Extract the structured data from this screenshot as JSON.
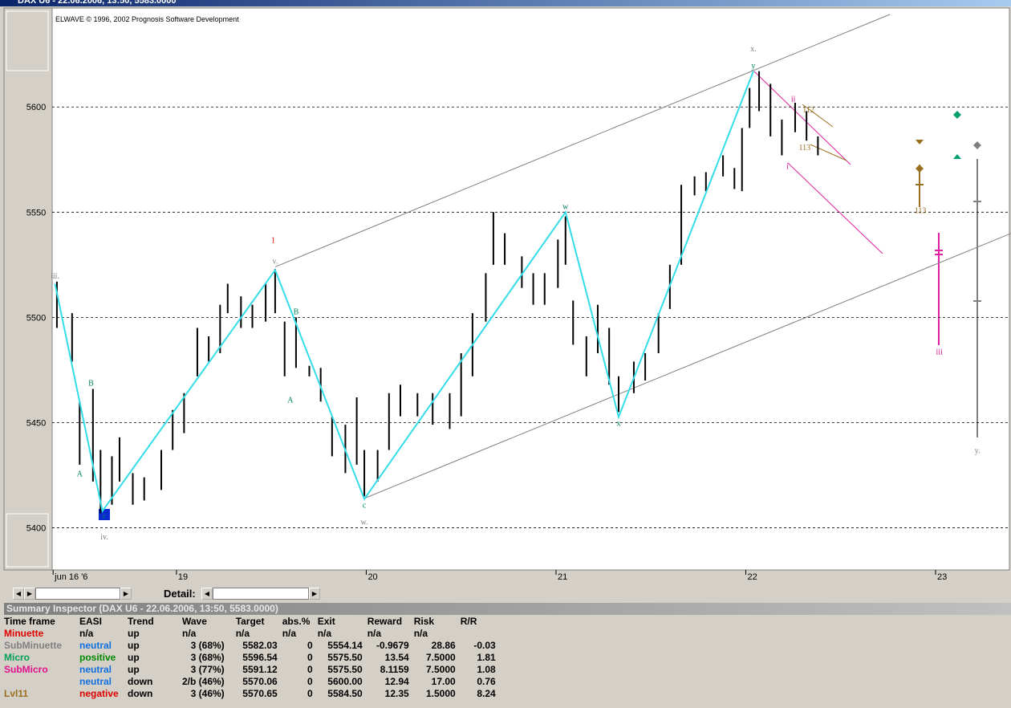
{
  "window_title": "DAX U6 - 22.06.2006, 13:50, 5583.0000",
  "chart_data": {
    "type": "ohlc",
    "title": "ELWAVE © 1996, 2002 Prognosis Software Development",
    "xlim": [
      0.345,
      5.389
    ],
    "ylim": [
      5380,
      5647
    ],
    "yticks": [
      5400,
      5450,
      5500,
      5550,
      5600
    ],
    "xticks": [
      {
        "value": 0.35,
        "label": "jun 16 '6"
      },
      {
        "value": 1,
        "label": "19"
      },
      {
        "value": 2,
        "label": "20"
      },
      {
        "value": 3,
        "label": "21"
      },
      {
        "value": 4,
        "label": "22"
      },
      {
        "value": 5,
        "label": "23"
      }
    ],
    "grid": true,
    "color": "#000000",
    "x": [
      0.37,
      0.45,
      0.49,
      0.56,
      0.6,
      0.66,
      0.7,
      0.77,
      0.83,
      0.92,
      0.98,
      1.04,
      1.11,
      1.17,
      1.23,
      1.27,
      1.34,
      1.4,
      1.47,
      1.52,
      1.57,
      1.63,
      1.7,
      1.76,
      1.82,
      1.89,
      1.95,
      1.99,
      2.06,
      2.12,
      2.18,
      2.27,
      2.35,
      2.44,
      2.5,
      2.56,
      2.63,
      2.67,
      2.73,
      2.82,
      2.88,
      2.94,
      3.01,
      3.05,
      3.09,
      3.16,
      3.22,
      3.28,
      3.33,
      3.41,
      3.47,
      3.54,
      3.6,
      3.66,
      3.73,
      3.79,
      3.88,
      3.94,
      3.98,
      4.02,
      4.07,
      4.13,
      4.19,
      4.26,
      4.32,
      4.38
    ],
    "high": [
      5517,
      5502,
      5460,
      5466,
      5437,
      5434,
      5443,
      5426,
      5424,
      5437,
      5456,
      5464,
      5495,
      5491,
      5506,
      5516,
      5510,
      5506,
      5516,
      5523,
      5498,
      5500,
      5477,
      5476,
      5453,
      5449,
      5462,
      5437,
      5437,
      5464,
      5468,
      5464,
      5464,
      5464,
      5483,
      5502,
      5521,
      5550,
      5540,
      5529,
      5521,
      5521,
      5537,
      5548,
      5508,
      5491,
      5506,
      5495,
      5472,
      5479,
      5483,
      5502,
      5525,
      5563,
      5567,
      5569,
      5577,
      5571,
      5590,
      5609,
      5617,
      5611,
      5594,
      5602,
      5598,
      5586
    ],
    "low": [
      5495,
      5479,
      5430,
      5422,
      5407,
      5411,
      5422,
      5411,
      5413,
      5418,
      5437,
      5445,
      5472,
      5479,
      5483,
      5502,
      5495,
      5495,
      5498,
      5502,
      5472,
      5476,
      5472,
      5460,
      5434,
      5426,
      5430,
      5415,
      5422,
      5437,
      5453,
      5453,
      5449,
      5447,
      5453,
      5472,
      5498,
      5525,
      5525,
      5514,
      5506,
      5506,
      5514,
      5525,
      5487,
      5472,
      5483,
      5468,
      5455,
      5464,
      5470,
      5483,
      5504,
      5525,
      5558,
      5560,
      5567,
      5561,
      5560,
      5590,
      5598,
      5586,
      5577,
      5588,
      5584,
      5577
    ],
    "zigzag": {
      "color": "#33dde8",
      "x": [
        0.36,
        0.61,
        1.52,
        1.99,
        3.05,
        3.33,
        4.04
      ],
      "y": [
        5516,
        5408,
        5522.5,
        5413.7,
        5550,
        5452.7,
        5617
      ]
    },
    "channel": {
      "color": "#808080",
      "lines": [
        {
          "x": [
            1.52,
            4.76
          ],
          "y": [
            5524,
            5644
          ]
        },
        {
          "x": [
            1.99,
            5.4
          ],
          "y": [
            5414,
            5540
          ]
        }
      ]
    },
    "labels": [
      {
        "text": "iii.",
        "x": 0.36,
        "y": 5520,
        "color": "#808080"
      },
      {
        "text": "iv.",
        "x": 0.62,
        "y": 5396,
        "color": "#808080"
      },
      {
        "text": "v.",
        "x": 1.52,
        "y": 5527,
        "color": "#808080"
      },
      {
        "text": "w.",
        "x": 1.99,
        "y": 5403,
        "color": "#808080"
      },
      {
        "text": "x.",
        "x": 4.04,
        "y": 5628,
        "color": "#808080"
      },
      {
        "text": "y.",
        "x": 5.22,
        "y": 5437,
        "color": "#808080"
      },
      {
        "text": "1",
        "x": 1.51,
        "y": 5537,
        "color": "#e00000"
      },
      {
        "text": "B",
        "x": 0.55,
        "y": 5469,
        "color": "#008060"
      },
      {
        "text": "A",
        "x": 0.49,
        "y": 5426,
        "color": "#008060"
      },
      {
        "text": "c",
        "x": 0.62,
        "y": 5406,
        "color": "#008060"
      },
      {
        "text": "B",
        "x": 1.63,
        "y": 5503,
        "color": "#008060"
      },
      {
        "text": "A",
        "x": 1.6,
        "y": 5461,
        "color": "#008060"
      },
      {
        "text": "c",
        "x": 1.99,
        "y": 5411,
        "color": "#008060"
      },
      {
        "text": "w",
        "x": 3.05,
        "y": 5553,
        "color": "#008060"
      },
      {
        "text": "x",
        "x": 3.33,
        "y": 5450,
        "color": "#008060"
      },
      {
        "text": "y",
        "x": 4.04,
        "y": 5620,
        "color": "#008060"
      },
      {
        "text": "ii",
        "x": 4.25,
        "y": 5604,
        "color": "#c0108a"
      },
      {
        "text": "i",
        "x": 4.22,
        "y": 5572,
        "color": "#c0108a"
      },
      {
        "text": "iii",
        "x": 5.02,
        "y": 5484,
        "color": "#c0108a"
      },
      {
        "text": "112",
        "x": 4.33,
        "y": 5599,
        "color": "#9a7020"
      },
      {
        "text": "113",
        "x": 4.31,
        "y": 5581,
        "color": "#9a7020"
      },
      {
        "text": "113",
        "x": 4.92,
        "y": 5551,
        "color": "#9a7020"
      }
    ]
  },
  "detail_label": "Detail:",
  "summary": {
    "title": "Summary Inspector (DAX U6 - 22.06.2006, 13:50, 5583.0000)",
    "columns": [
      "Time frame",
      "EASI",
      "Trend",
      "Wave",
      "Target",
      "abs.%",
      "Exit",
      "Reward",
      "Risk",
      "R/R"
    ],
    "rows": [
      [
        "Minuette",
        "n/a",
        "up",
        "n/a",
        "n/a",
        "n/a",
        "n/a",
        "n/a",
        "n/a",
        null
      ],
      [
        "SubMinuette",
        "neutral",
        "up",
        "3 (68%)",
        "5582.03",
        "0",
        "5554.14",
        "-0.9679",
        "28.86",
        "-0.03"
      ],
      [
        "Micro",
        "positive",
        "up",
        "3 (68%)",
        "5596.54",
        "0",
        "5575.50",
        "13.54",
        "7.5000",
        "1.81"
      ],
      [
        "SubMicro",
        "neutral",
        "up",
        "3 (77%)",
        "5591.12",
        "0",
        "5575.50",
        "8.1159",
        "7.5000",
        "1.08"
      ],
      [
        null,
        "neutral",
        "down",
        "2/b (46%)",
        "5570.06",
        "0",
        "5600.00",
        "12.94",
        "17.00",
        "0.76"
      ],
      [
        "Lvl11",
        "negative",
        "down",
        "3 (46%)",
        "5570.65",
        "0",
        "5584.50",
        "12.35",
        "1.5000",
        "8.24"
      ]
    ]
  }
}
